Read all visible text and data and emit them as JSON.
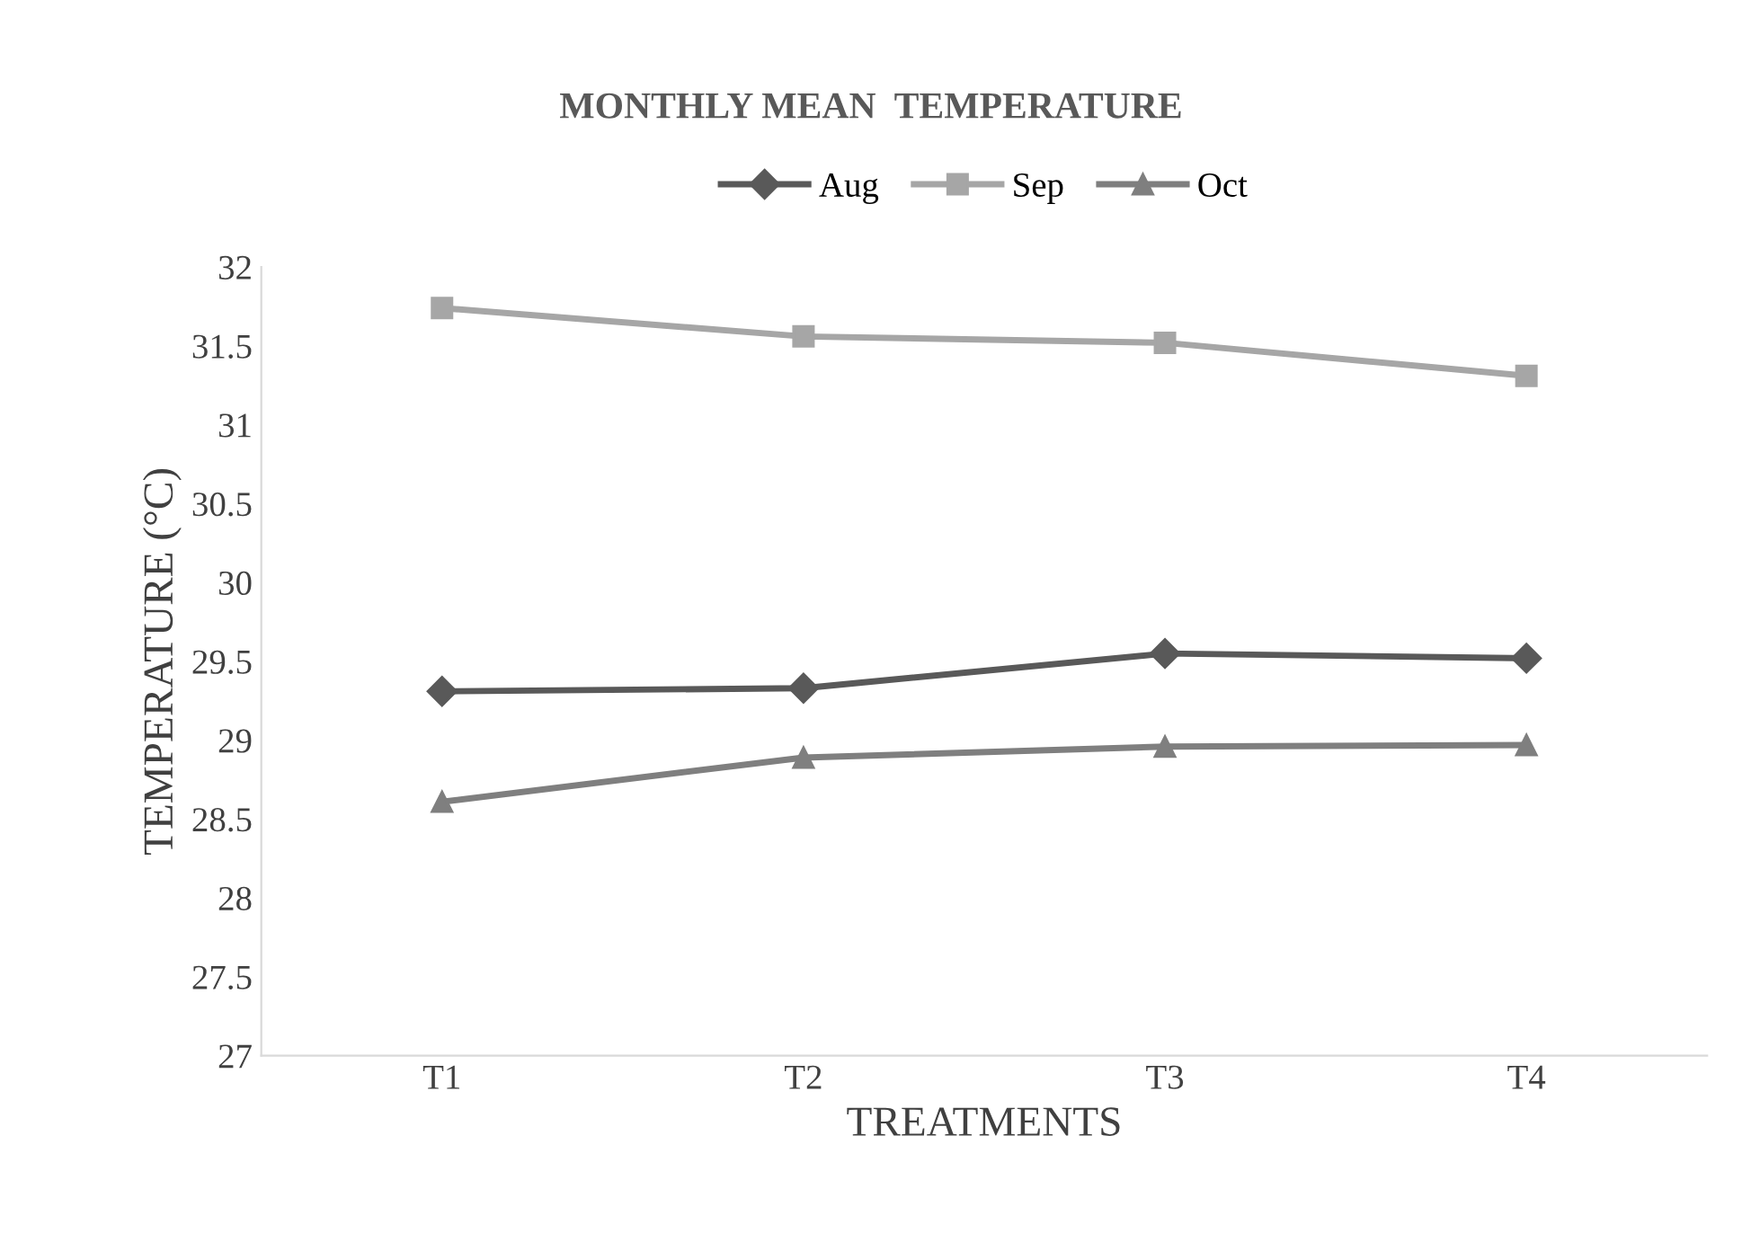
{
  "chart_data": {
    "type": "line",
    "title": "MONTHLY MEAN  TEMPERATURE",
    "xlabel": "TREATMENTS",
    "ylabel": "TEMPERATURE (°C)",
    "categories": [
      "T1",
      "T2",
      "T3",
      "T4"
    ],
    "series": [
      {
        "name": "Aug",
        "color": "#595959",
        "marker": "diamond",
        "values": [
          29.31,
          29.33,
          29.55,
          29.52
        ]
      },
      {
        "name": "Sep",
        "color": "#a6a6a6",
        "marker": "square",
        "values": [
          31.74,
          31.56,
          31.52,
          31.31
        ]
      },
      {
        "name": "Oct",
        "color": "#7f7f7f",
        "marker": "triangle",
        "values": [
          28.61,
          28.89,
          28.96,
          28.97
        ]
      }
    ],
    "ylim": [
      27,
      32
    ],
    "yticks": [
      27,
      27.5,
      28,
      28.5,
      29,
      29.5,
      30,
      30.5,
      31,
      31.5,
      32
    ],
    "grid": false,
    "legend": "top"
  }
}
